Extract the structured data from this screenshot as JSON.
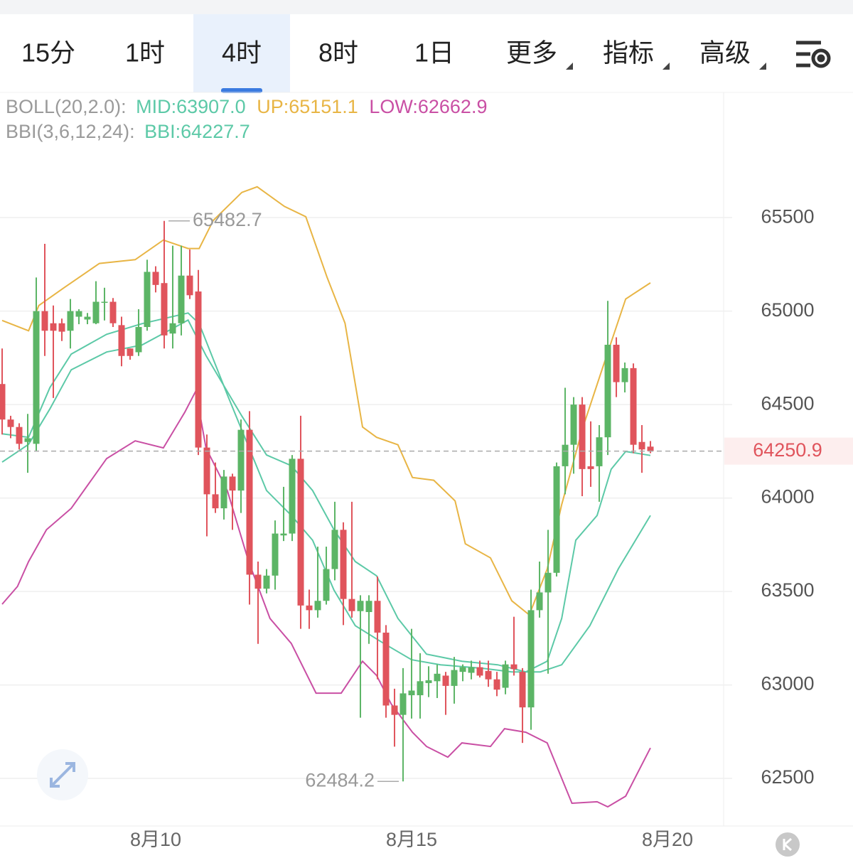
{
  "tabs": [
    "15分",
    "1时",
    "4时",
    "8时",
    "1日",
    "更多",
    "指标",
    "高级"
  ],
  "selected_tab": 2,
  "chart_data": {
    "type": "candlestick",
    "indicators": [
      "BOLL(20,2.0):",
      "BBI(3,6,12,24):"
    ],
    "up_color": "#5cb566",
    "down_color": "#e0545c",
    "xlim": [
      -0.25,
      84.58
    ],
    "xticks": [
      {
        "value": 18,
        "label": "8月10"
      },
      {
        "value": 48,
        "label": "8月15"
      },
      {
        "value": 78,
        "label": "8月20"
      }
    ],
    "ylim": [
      62253,
      66170
    ],
    "yticks": [
      62500,
      63000,
      63500,
      64000,
      64500,
      65000,
      65500
    ],
    "grid": true,
    "candles": {
      "open": [
        64610,
        64420,
        64380,
        64300,
        64290,
        65000,
        64935,
        64935,
        64895,
        64970,
        64955,
        64935,
        65045,
        65050,
        64925,
        64800,
        64780,
        64915,
        65210,
        65150,
        64880,
        64935,
        65190,
        65105,
        64270,
        64020,
        63945,
        64115,
        64040,
        64365,
        63590,
        63515,
        63585,
        63800,
        63810,
        64210,
        63425,
        63400,
        63450,
        63620,
        63830,
        63460,
        63395,
        63390,
        63450,
        63280,
        62890,
        62840,
        62945,
        62945,
        63010,
        63020,
        63050,
        62995,
        63070,
        63065,
        63095,
        63075,
        63030,
        62985,
        63110,
        63070,
        62880,
        63400,
        63495,
        63600,
        64170,
        64285,
        64500,
        64170,
        64170,
        64325,
        64820,
        64620,
        64695,
        64300,
        64275
      ],
      "high": [
        64800,
        64440,
        64400,
        64450,
        65180,
        65360,
        65030,
        64960,
        65065,
        65010,
        64990,
        65160,
        65125,
        65070,
        64970,
        64800,
        65010,
        65275,
        65240,
        65482.7,
        65350,
        65350,
        65330,
        65220,
        64340,
        64190,
        64150,
        64130,
        64420,
        64465,
        63660,
        63620,
        63880,
        64060,
        64230,
        64440,
        63510,
        63740,
        63740,
        63980,
        63870,
        63980,
        63480,
        63480,
        63580,
        63320,
        62980,
        63090,
        63300,
        63170,
        63100,
        63110,
        63070,
        63150,
        63110,
        63130,
        63130,
        63130,
        63070,
        63130,
        63365,
        63090,
        63510,
        63660,
        63830,
        64190,
        64590,
        64540,
        64540,
        64410,
        64390,
        65055,
        64860,
        64725,
        64720,
        64390,
        64305
      ],
      "low": [
        64340,
        64320,
        64260,
        64135,
        64250,
        64760,
        64535,
        64840,
        64800,
        64930,
        64930,
        64930,
        64950,
        64915,
        64705,
        64740,
        64760,
        64895,
        65100,
        64800,
        64800,
        64870,
        65065,
        64230,
        63795,
        63920,
        63885,
        63830,
        63920,
        63430,
        63220,
        63490,
        63510,
        63770,
        63770,
        63300,
        63300,
        63360,
        63430,
        63560,
        63320,
        63360,
        62825,
        63220,
        63030,
        62825,
        62670,
        62484.2,
        62820,
        62820,
        62935,
        62930,
        62840,
        62900,
        63020,
        63030,
        63040,
        62990,
        62940,
        62950,
        63050,
        62690,
        62760,
        63360,
        63060,
        63580,
        64020,
        64130,
        64010,
        64060,
        63980,
        64230,
        64540,
        64565,
        64240,
        64135,
        64240
      ],
      "close": [
        64420,
        64380,
        64290,
        64320,
        65000,
        64895,
        64895,
        64890,
        65000,
        65000,
        64970,
        65050,
        65050,
        64935,
        64760,
        64760,
        64915,
        65210,
        65140,
        64870,
        64935,
        65190,
        65085,
        64270,
        64020,
        63945,
        64115,
        64040,
        64365,
        63590,
        63515,
        63585,
        63810,
        63810,
        64210,
        63425,
        63400,
        63450,
        63620,
        63830,
        63460,
        63395,
        63450,
        63450,
        63280,
        62890,
        62840,
        62955,
        62970,
        63020,
        63025,
        63060,
        62995,
        63080,
        63095,
        63095,
        63050,
        63030,
        62975,
        63110,
        63085,
        62880,
        63400,
        63495,
        63600,
        64170,
        64285,
        64500,
        64155,
        64155,
        64325,
        64820,
        64620,
        64695,
        64285,
        64260,
        64250.9
      ]
    },
    "series": [
      {
        "name": "MID:63907.0",
        "color": "#5cc9a7",
        "x": [
          0,
          3.1,
          5.6,
          8.1,
          12.25,
          16.4,
          21.8,
          23.1,
          26.4,
          31,
          33.9,
          36.4,
          38.9,
          41.4,
          44.75,
          48,
          51.4,
          56.4,
          59.75,
          63.1,
          65.6,
          68.9,
          72.25,
          76
        ],
        "values": [
          64344,
          64325,
          64591,
          64770,
          64876,
          64933,
          64990,
          64933,
          64553,
          64040,
          63907,
          63774,
          63508,
          63317,
          63222,
          63135,
          63108,
          63089,
          63070,
          63070,
          63108,
          63317,
          63622,
          63907.0
        ]
      },
      {
        "name": "UP:65151.1",
        "color": "#e8b545",
        "x": [
          0,
          3.1,
          4.3,
          7.25,
          11.4,
          15.6,
          18.9,
          21.8,
          23.1,
          24.75,
          28.1,
          29.9,
          33.1,
          35.6,
          38.1,
          40.2,
          42.25,
          43.9,
          46.4,
          48.1,
          50.6,
          53.1,
          54.3,
          57.25,
          59.75,
          61.8,
          63.9,
          65.6,
          68.1,
          70.6,
          73.1,
          76
        ],
        "values": [
          64950,
          64895,
          65030,
          65125,
          65255,
          65275,
          65380,
          65335,
          65335,
          65485,
          65635,
          65665,
          65560,
          65505,
          65180,
          64935,
          64380,
          64325,
          64285,
          64110,
          64095,
          63985,
          63755,
          63680,
          63450,
          63375,
          63620,
          63965,
          64380,
          64725,
          65065,
          65151.1
        ]
      },
      {
        "name": "LOW:62662.9",
        "color": "#c94fa4",
        "x": [
          0,
          1.8,
          3.1,
          5.2,
          8.1,
          12.25,
          15.6,
          18.9,
          21.4,
          22.7,
          23.9,
          26.4,
          28.9,
          31.4,
          33.9,
          36.8,
          39.75,
          42.25,
          43.9,
          45.6,
          48.1,
          49.75,
          52.25,
          53.9,
          57.25,
          58.9,
          61.4,
          63.9,
          66.8,
          69.75,
          71,
          73.1,
          76
        ],
        "values": [
          63432,
          63527,
          63660,
          63831,
          63945,
          64211,
          64306,
          64268,
          64458,
          64572,
          64268,
          64040,
          63660,
          63356,
          63222,
          62956,
          62956,
          63127,
          63051,
          62899,
          62747,
          62671,
          62614,
          62690,
          62671,
          62766,
          62747,
          62690,
          62367,
          62375,
          62348,
          62405,
          62662.9
        ]
      },
      {
        "name": "BBI:64227.7",
        "color": "#5cc9a7",
        "x": [
          0,
          3.1,
          5.6,
          8.1,
          12.25,
          16.4,
          21.8,
          23.9,
          28.1,
          31,
          33.9,
          36.4,
          38.9,
          41.4,
          43.9,
          46.4,
          49.75,
          53.9,
          58.1,
          61.4,
          63.9,
          65.6,
          67.25,
          69.75,
          71.4,
          73.1,
          76
        ],
        "values": [
          64192,
          64287,
          64477,
          64686,
          64781,
          64819,
          64952,
          64762,
          64439,
          64230,
          64173,
          64040,
          63831,
          63660,
          63584,
          63356,
          63165,
          63127,
          63108,
          63070,
          63127,
          63356,
          63774,
          63907,
          64154,
          64249,
          64227.7
        ]
      }
    ]
  }
}
